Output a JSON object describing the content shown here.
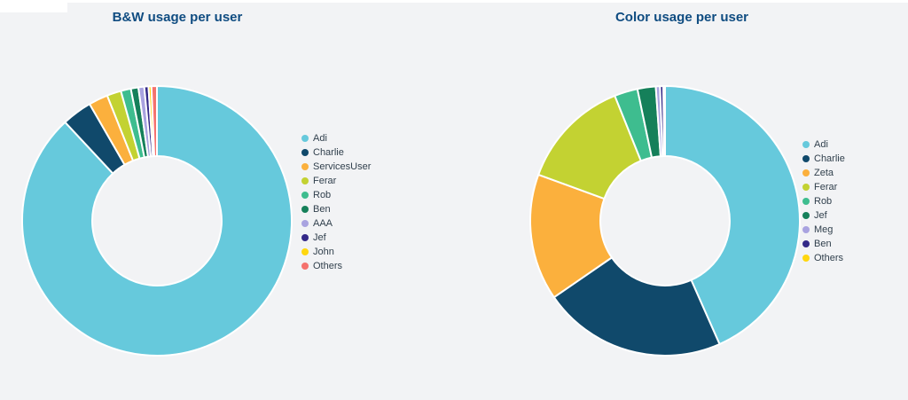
{
  "page": {
    "background_color": "#F2F3F5",
    "title_color": "#0F4C81",
    "legend_text_color": "#31404D"
  },
  "chart_data": [
    {
      "type": "donut",
      "title": "B&W usage per user",
      "legend_position": "right",
      "inner_radius_ratio": 0.48,
      "values_are": "percent (estimated from arc angles)",
      "series": [
        {
          "name": "Adi",
          "value": 87.8,
          "color": "#66C9DC"
        },
        {
          "name": "Charlie",
          "value": 3.6,
          "color": "#10496B"
        },
        {
          "name": "ServicesUser",
          "value": 2.3,
          "color": "#FBB03D"
        },
        {
          "name": "Ferar",
          "value": 1.7,
          "color": "#C3D232"
        },
        {
          "name": "Rob",
          "value": 1.2,
          "color": "#3EBD8F"
        },
        {
          "name": "Ben",
          "value": 0.9,
          "color": "#15805A"
        },
        {
          "name": "AAA",
          "value": 0.7,
          "color": "#A9A3E0"
        },
        {
          "name": "Jef",
          "value": 0.5,
          "color": "#332988"
        },
        {
          "name": "John",
          "value": 0.35,
          "color": "#FFD70F"
        },
        {
          "name": "Others",
          "value": 0.65,
          "color": "#F5726E"
        }
      ]
    },
    {
      "type": "donut",
      "title": "Color usage per user",
      "legend_position": "right",
      "inner_radius_ratio": 0.48,
      "values_are": "percent (estimated from arc angles)",
      "series": [
        {
          "name": "Adi",
          "value": 43.5,
          "color": "#66C9DC"
        },
        {
          "name": "Charlie",
          "value": 22.1,
          "color": "#10496B"
        },
        {
          "name": "Zeta",
          "value": 15.2,
          "color": "#FBB03D"
        },
        {
          "name": "Ferar",
          "value": 13.4,
          "color": "#C3D232"
        },
        {
          "name": "Rob",
          "value": 2.8,
          "color": "#3EBD8F"
        },
        {
          "name": "Jef",
          "value": 2.2,
          "color": "#15805A"
        },
        {
          "name": "Meg",
          "value": 0.5,
          "color": "#A9A3E0"
        },
        {
          "name": "Ben",
          "value": 0.4,
          "color": "#332988"
        },
        {
          "name": "Others",
          "value": 0.2,
          "color": "#FFD70F"
        }
      ]
    }
  ]
}
